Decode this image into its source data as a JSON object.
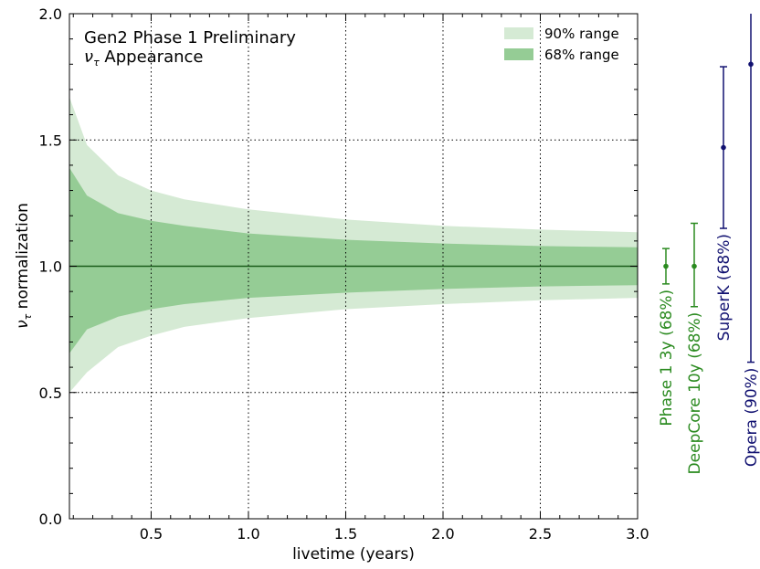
{
  "chart_data": {
    "type": "area",
    "annotation": {
      "line1": "Gen2 Phase 1 Preliminary",
      "line2_symbol": "ν",
      "line2_sub": "τ",
      "line2_text": " Appearance"
    },
    "xlabel": "livetime (years)",
    "ylabel": {
      "symbol": "ν",
      "sub": "τ",
      "text": " normalization"
    },
    "xlim": [
      0.08,
      3.0
    ],
    "ylim": [
      0.0,
      2.0
    ],
    "x_ticks": [
      0.5,
      1.0,
      1.5,
      2.0,
      2.5,
      3.0
    ],
    "x_tick_labels": [
      "0.5",
      "1.0",
      "1.5",
      "2.0",
      "2.5",
      "3.0"
    ],
    "y_ticks": [
      0.0,
      0.5,
      1.0,
      1.5,
      2.0
    ],
    "y_tick_labels": [
      "0.0",
      "0.5",
      "1.0",
      "1.5",
      "2.0"
    ],
    "grid": true,
    "legend_position": "top-right",
    "x": [
      0.08,
      0.17,
      0.33,
      0.5,
      0.67,
      1.0,
      1.5,
      2.0,
      2.5,
      3.0
    ],
    "bands": [
      {
        "name": "90% range",
        "color": "#d5ead4",
        "upper": [
          1.67,
          1.48,
          1.36,
          1.3,
          1.265,
          1.225,
          1.185,
          1.16,
          1.145,
          1.135
        ],
        "lower": [
          0.5,
          0.58,
          0.68,
          0.725,
          0.76,
          0.795,
          0.83,
          0.85,
          0.865,
          0.875
        ]
      },
      {
        "name": "68% range",
        "color": "#95cc95",
        "upper": [
          1.39,
          1.28,
          1.21,
          1.18,
          1.16,
          1.13,
          1.105,
          1.09,
          1.08,
          1.075
        ],
        "lower": [
          0.655,
          0.75,
          0.8,
          0.83,
          0.85,
          0.875,
          0.895,
          0.91,
          0.92,
          0.925
        ]
      }
    ],
    "reference_line": {
      "y": 1.0,
      "color": "#1a5c1a"
    },
    "side_measurements": [
      {
        "label": "Phase 1 3y (68%)",
        "color": "#2a8a1f",
        "value": 1.0,
        "low": 0.93,
        "high": 1.07
      },
      {
        "label": "DeepCore 10y (68%)",
        "color": "#2a8a1f",
        "value": 1.0,
        "low": 0.84,
        "high": 1.17
      },
      {
        "label": "SuperK (68%)",
        "color": "#101070",
        "value": 1.47,
        "low": 1.15,
        "high": 1.79
      },
      {
        "label": "Opera (90%)",
        "color": "#101070",
        "value": 1.8,
        "low": 0.62,
        "high": 2.0
      }
    ]
  }
}
